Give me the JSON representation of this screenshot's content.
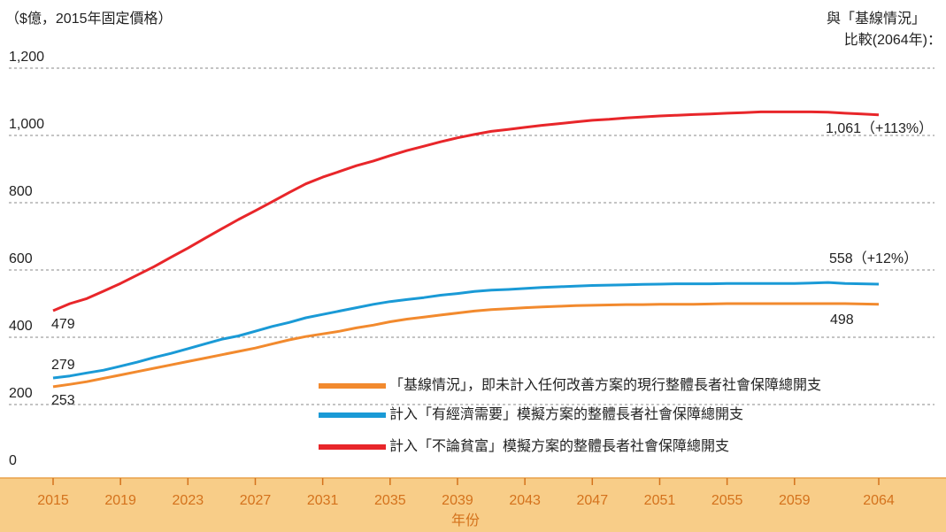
{
  "chart_data": {
    "type": "line",
    "y_axis_label": "（$億，2015年固定價格）",
    "x_axis_label": "年份",
    "note": [
      "與「基線情況」",
      "比較(2064年)："
    ],
    "x": [
      2015,
      2016,
      2017,
      2018,
      2019,
      2020,
      2021,
      2022,
      2023,
      2024,
      2025,
      2026,
      2027,
      2028,
      2029,
      2030,
      2031,
      2032,
      2033,
      2034,
      2035,
      2036,
      2037,
      2038,
      2039,
      2040,
      2041,
      2042,
      2043,
      2044,
      2045,
      2046,
      2047,
      2048,
      2049,
      2050,
      2051,
      2052,
      2053,
      2054,
      2055,
      2056,
      2057,
      2058,
      2059,
      2060,
      2061,
      2062,
      2063,
      2064
    ],
    "series": [
      {
        "name": "「基線情況」，即未計入任何改善方案的現行整體長者社會保障總開支",
        "color": "#f28a2e",
        "start_label": "253",
        "end_label": "498",
        "values": [
          253,
          260,
          268,
          278,
          288,
          298,
          308,
          318,
          328,
          338,
          348,
          358,
          368,
          380,
          392,
          402,
          410,
          418,
          428,
          436,
          446,
          454,
          460,
          466,
          472,
          478,
          482,
          485,
          488,
          490,
          492,
          494,
          495,
          496,
          497,
          497,
          498,
          498,
          498,
          499,
          500,
          500,
          500,
          500,
          500,
          500,
          500,
          500,
          499,
          498
        ]
      },
      {
        "name": "計入「有經濟需要」模擬方案的整體長者社會保障總開支",
        "color": "#1a9ad6",
        "start_label": "279",
        "end_label": "558（+12%）",
        "values": [
          279,
          285,
          294,
          302,
          314,
          326,
          340,
          352,
          366,
          380,
          394,
          404,
          418,
          432,
          444,
          458,
          468,
          478,
          488,
          498,
          506,
          512,
          518,
          525,
          530,
          536,
          540,
          542,
          545,
          548,
          550,
          552,
          554,
          555,
          556,
          557,
          558,
          559,
          559,
          559,
          560,
          560,
          560,
          560,
          560,
          561,
          563,
          560,
          559,
          558
        ]
      },
      {
        "name": "計入「不論貧富」模擬方案的整體長者社會保障總開支",
        "color": "#e8262a",
        "start_label": "479",
        "end_label": "1,061（+113%）",
        "values": [
          479,
          500,
          515,
          537,
          560,
          585,
          610,
          638,
          665,
          694,
          722,
          750,
          776,
          803,
          830,
          856,
          876,
          893,
          910,
          924,
          940,
          955,
          968,
          981,
          993,
          1003,
          1012,
          1018,
          1024,
          1030,
          1035,
          1040,
          1045,
          1048,
          1052,
          1055,
          1058,
          1060,
          1062,
          1064,
          1066,
          1068,
          1070,
          1070,
          1070,
          1070,
          1069,
          1066,
          1064,
          1061
        ]
      }
    ],
    "xlim": [
      2015,
      2064
    ],
    "xticks": [
      2015,
      2019,
      2023,
      2027,
      2031,
      2035,
      2039,
      2043,
      2047,
      2051,
      2055,
      2059,
      2064
    ],
    "ylim": [
      0,
      1200
    ],
    "yticks": [
      0,
      200,
      400,
      600,
      800,
      {
        "value": 1000,
        "label": "1,000"
      },
      {
        "value": 1200,
        "label": "1,200"
      }
    ],
    "grid": true
  }
}
